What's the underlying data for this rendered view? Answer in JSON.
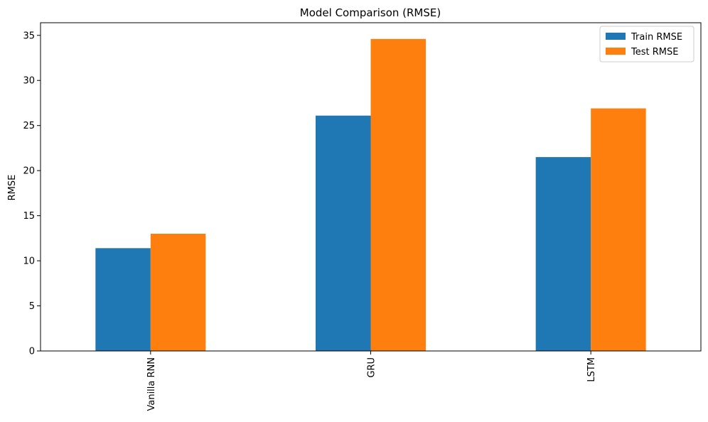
{
  "chart_data": {
    "type": "bar",
    "title": "Model Comparison (RMSE)",
    "xlabel": "",
    "ylabel": "RMSE",
    "categories": [
      "Vanilla RNN",
      "GRU",
      "LSTM"
    ],
    "series": [
      {
        "name": "Train RMSE",
        "color": "#1f77b4",
        "values": [
          11.4,
          26.1,
          21.5
        ]
      },
      {
        "name": "Test RMSE",
        "color": "#ff7f0e",
        "values": [
          13.0,
          34.6,
          26.9
        ]
      }
    ],
    "ylim": [
      0,
      36.4
    ],
    "yticks": [
      0,
      5,
      10,
      15,
      20,
      25,
      30,
      35
    ],
    "grid": false,
    "legend": "top-right"
  }
}
